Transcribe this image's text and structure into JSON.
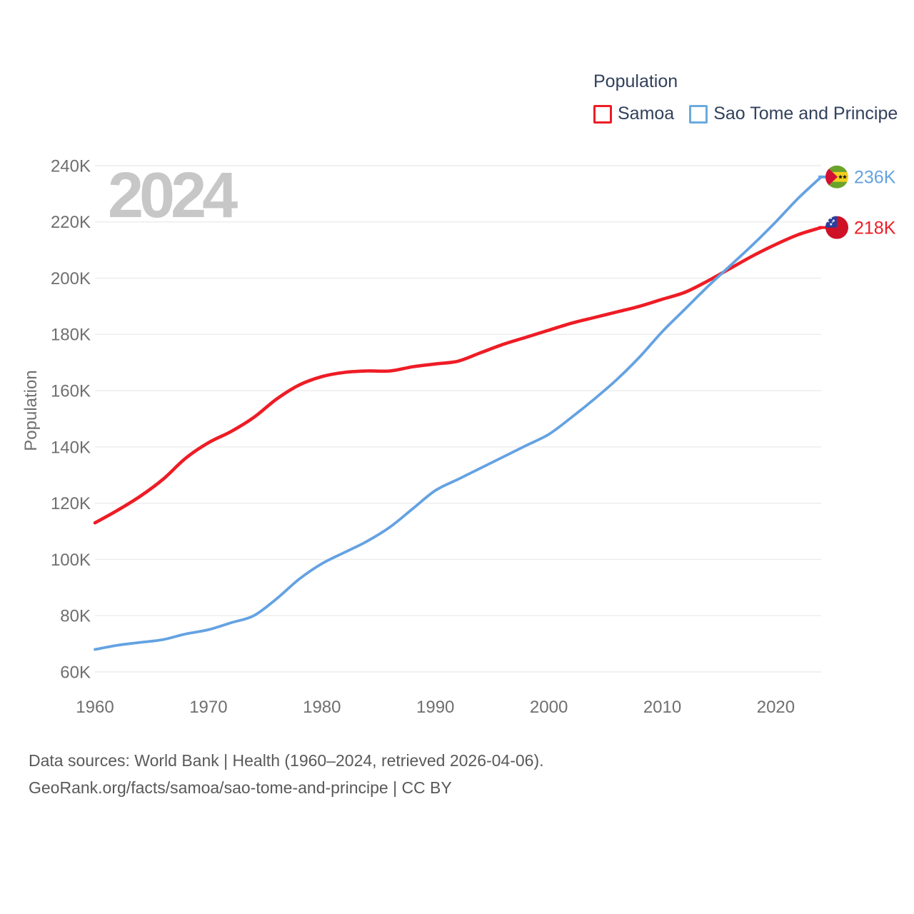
{
  "legend": {
    "title": "Population",
    "items": [
      {
        "label": "Samoa",
        "box_color": "#ee1c25"
      },
      {
        "label": "Sao Tome and Principe",
        "box_color": "#6aaade"
      }
    ]
  },
  "watermark": "2024",
  "footer": {
    "line1": "Data sources: World Bank | Health (1960–2024, retrieved 2026-04-06).",
    "line2": "GeoRank.org/facts/samoa/sao-tome-and-principe | CC BY"
  },
  "chart_data": {
    "type": "line",
    "title": "Population",
    "xlabel": "",
    "ylabel": "Population",
    "values_unit": "thousands of people",
    "grid": "horizontal",
    "legend_position": "top-right",
    "xlim": [
      1960,
      2024
    ],
    "ylim": [
      60,
      240
    ],
    "x_ticks": [
      1960,
      1970,
      1980,
      1990,
      2000,
      2010,
      2020
    ],
    "y_ticks": [
      60,
      80,
      100,
      120,
      140,
      160,
      180,
      200,
      220,
      240
    ],
    "y_tick_labels": [
      "60K",
      "80K",
      "100K",
      "120K",
      "140K",
      "160K",
      "180K",
      "200K",
      "220K",
      "240K"
    ],
    "x": [
      1960,
      1962,
      1964,
      1966,
      1968,
      1970,
      1972,
      1974,
      1976,
      1978,
      1980,
      1982,
      1984,
      1986,
      1988,
      1990,
      1992,
      1994,
      1996,
      1998,
      2000,
      2002,
      2004,
      2006,
      2008,
      2010,
      2012,
      2014,
      2016,
      2018,
      2020,
      2022,
      2024
    ],
    "series": [
      {
        "name": "Samoa",
        "color": "#ee1c25",
        "flag": "samoa",
        "end_label": "218K",
        "end_value": 218,
        "values": [
          113,
          117.5,
          122.5,
          128.5,
          136,
          141.5,
          145.5,
          150.5,
          157,
          162,
          165,
          166.5,
          167,
          167,
          168.5,
          169.5,
          170.5,
          173.5,
          176.5,
          179,
          181.5,
          184,
          186,
          188,
          190,
          192.5,
          195,
          199,
          203.5,
          208,
          212,
          215.5,
          218
        ]
      },
      {
        "name": "Sao Tome and Principe",
        "color": "#64a2e2",
        "flag": "sao-tome",
        "end_label": "236K",
        "end_value": 236,
        "values": [
          68,
          69.5,
          70.5,
          71.5,
          73.5,
          75,
          77.5,
          80,
          86,
          93,
          98.5,
          102.5,
          106.5,
          111.5,
          118,
          124.5,
          128.5,
          132.5,
          136.5,
          140.5,
          144.5,
          150.5,
          157,
          164,
          172,
          181,
          189,
          197,
          204.5,
          212,
          220,
          228.5,
          236
        ]
      }
    ]
  }
}
